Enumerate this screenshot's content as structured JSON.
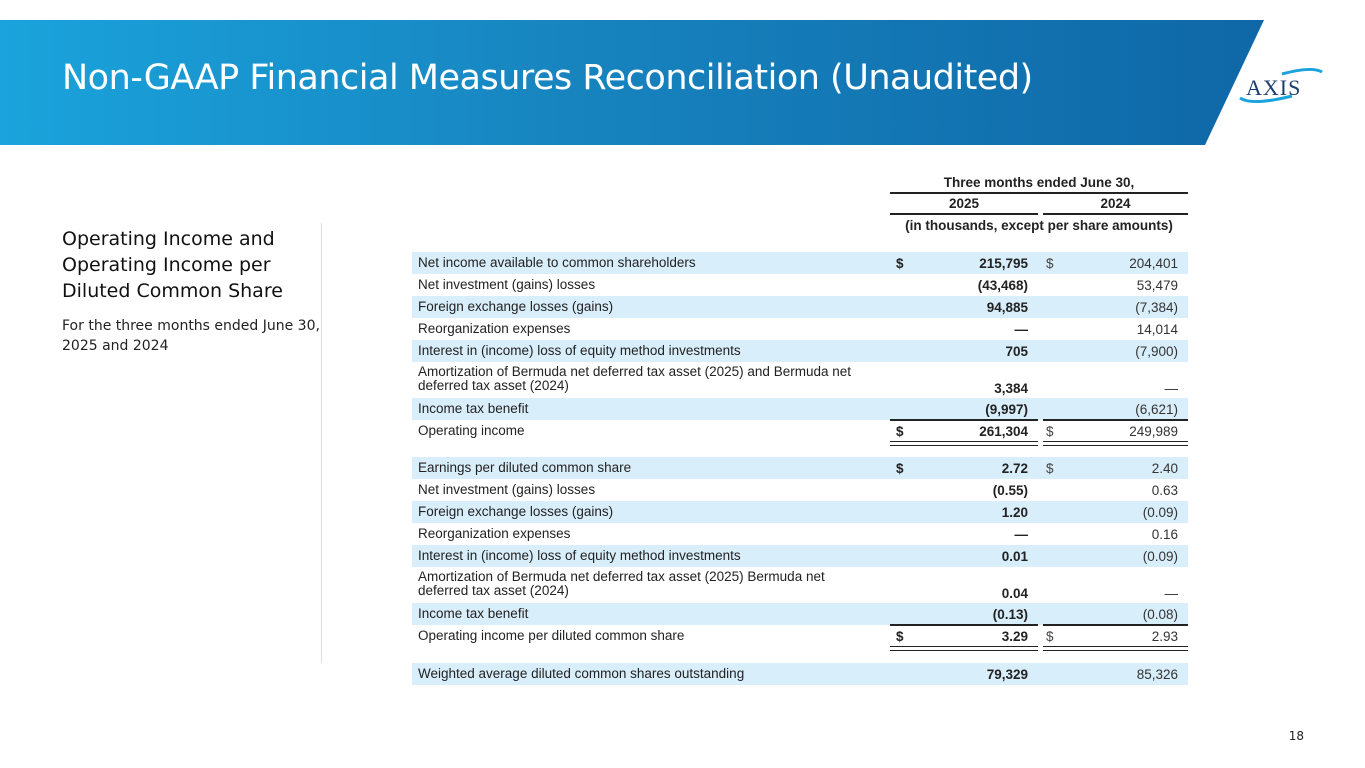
{
  "header": {
    "title": "Non-GAAP Financial Measures Reconciliation (Unaudited)",
    "logo_text": "AXIS"
  },
  "sidebar": {
    "heading": "Operating Income and Operating Income per Diluted Common Share",
    "subheading": "For the three months ended June 30, 2025 and 2024"
  },
  "table": {
    "period_header": "Three months ended June 30,",
    "years": [
      "2025",
      "2024"
    ],
    "units_note": "(in thousands, except per share amounts)",
    "rows": [
      {
        "label": "Net income available to common shareholders",
        "dollar": true,
        "v2025": "215,795",
        "v2024": "204,401"
      },
      {
        "label": "Net investment (gains) losses",
        "v2025": "(43,468)",
        "v2024": "53,479"
      },
      {
        "label": "Foreign exchange losses (gains)",
        "v2025": "94,885",
        "v2024": "(7,384)"
      },
      {
        "label": "Reorganization expenses",
        "v2025": "—",
        "v2024": "14,014"
      },
      {
        "label": "Interest in (income) loss of equity method investments",
        "v2025": "705",
        "v2024": "(7,900)"
      },
      {
        "label": "Amortization of Bermuda net deferred tax asset (2025) and Bermuda net deferred tax asset (2024)",
        "v2025": "3,384",
        "v2024": "—"
      },
      {
        "label": "Income tax benefit",
        "v2025": "(9,997)",
        "v2024": "(6,621)"
      },
      {
        "label": "Operating income",
        "dollar": true,
        "total": true,
        "v2025": "261,304",
        "v2024": "249,989"
      },
      {
        "label": "Earnings per diluted common share",
        "dollar": true,
        "v2025": "2.72",
        "v2024": "2.40"
      },
      {
        "label": "Net investment (gains) losses",
        "v2025": "(0.55)",
        "v2024": "0.63"
      },
      {
        "label": "Foreign exchange losses (gains)",
        "v2025": "1.20",
        "v2024": "(0.09)"
      },
      {
        "label": "Reorganization expenses",
        "v2025": "—",
        "v2024": "0.16"
      },
      {
        "label": "Interest in (income) loss of equity method investments",
        "v2025": "0.01",
        "v2024": "(0.09)"
      },
      {
        "label": "Amortization of Bermuda net deferred tax asset (2025) Bermuda net deferred tax asset (2024)",
        "v2025": "0.04",
        "v2024": "—"
      },
      {
        "label": "Income tax benefit",
        "v2025": "(0.13)",
        "v2024": "(0.08)"
      },
      {
        "label": "Operating income per diluted common share",
        "dollar": true,
        "total": true,
        "v2025": "3.29",
        "v2024": "2.93"
      },
      {
        "label": "Weighted average diluted common shares outstanding",
        "v2025": "79,329",
        "v2024": "85,326"
      }
    ],
    "dollar_sign": "$"
  },
  "page_number": "18",
  "colors": {
    "banner_start": "#1aa3dc",
    "banner_end": "#0f67a7",
    "row_shade": "#d9eefb"
  }
}
